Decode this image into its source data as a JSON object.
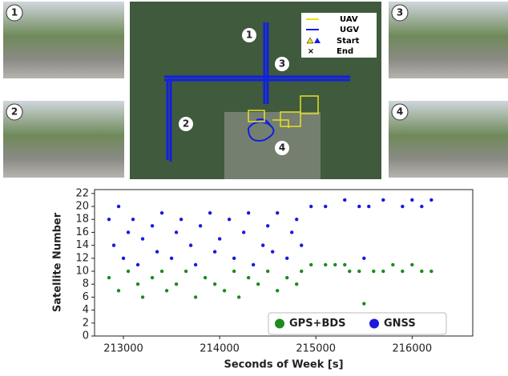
{
  "panels": {
    "photos": [
      "1",
      "2",
      "3",
      "4"
    ],
    "map_markers": [
      "1",
      "2",
      "3",
      "4"
    ],
    "map_legend": [
      "UAV",
      "UGV",
      "Start",
      "End"
    ]
  },
  "chart_data": {
    "type": "scatter",
    "xlabel": "Seconds of Week [s]",
    "ylabel": "Satellite Number",
    "xlim": [
      212700,
      216630
    ],
    "ylim": [
      0,
      22.6
    ],
    "xticks": [
      213000,
      214000,
      215000,
      216000
    ],
    "yticks": [
      0,
      2,
      4,
      6,
      8,
      10,
      12,
      14,
      16,
      18,
      20,
      22
    ],
    "legend": "lower right",
    "series": [
      {
        "name": "GPS+BDS",
        "color": "#1f8a1f",
        "x": [
          212850,
          212950,
          213050,
          213150,
          213200,
          213300,
          213400,
          213450,
          213550,
          213650,
          213750,
          213850,
          213950,
          214050,
          214150,
          214200,
          214300,
          214400,
          214500,
          214600,
          214700,
          214800,
          214850,
          214950,
          215100,
          215200,
          215300,
          215350,
          215450,
          215500,
          215600,
          215700,
          215800,
          215900,
          216000,
          216100,
          216200
        ],
        "values": [
          9,
          7,
          10,
          8,
          6,
          9,
          10,
          7,
          8,
          10,
          6,
          9,
          8,
          7,
          10,
          6,
          9,
          8,
          10,
          7,
          9,
          8,
          10,
          11,
          11,
          11,
          11,
          10,
          10,
          5,
          10,
          10,
          11,
          10,
          11,
          10,
          10
        ]
      },
      {
        "name": "GNSS",
        "color": "#1a1adc",
        "x": [
          212850,
          212900,
          212950,
          213000,
          213050,
          213100,
          213150,
          213200,
          213300,
          213350,
          213400,
          213500,
          213550,
          213600,
          213700,
          213750,
          213800,
          213900,
          213950,
          214000,
          214100,
          214150,
          214250,
          214300,
          214350,
          214450,
          214500,
          214550,
          214600,
          214700,
          214750,
          214800,
          214850,
          214950,
          215100,
          215300,
          215450,
          215500,
          215550,
          215700,
          215900,
          216000,
          216100,
          216200
        ],
        "values": [
          18,
          14,
          20,
          12,
          16,
          18,
          11,
          15,
          17,
          13,
          19,
          12,
          16,
          18,
          14,
          11,
          17,
          19,
          13,
          15,
          18,
          12,
          16,
          19,
          11,
          14,
          17,
          13,
          19,
          12,
          16,
          18,
          14,
          20,
          20,
          21,
          20,
          12,
          20,
          21,
          20,
          21,
          20,
          21
        ]
      }
    ]
  }
}
